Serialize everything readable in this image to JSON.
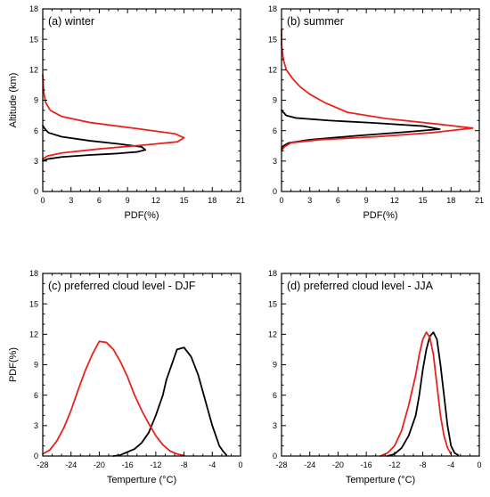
{
  "chart_data": [
    {
      "id": "a",
      "type": "line",
      "title": "(a) winter",
      "xlabel": "PDF(%)",
      "ylabel": "Altitude (km)",
      "xlim": [
        0,
        21
      ],
      "ylim": [
        0,
        18
      ],
      "xticks": [
        0,
        3,
        6,
        9,
        12,
        15,
        18,
        21
      ],
      "yticks": [
        0,
        3,
        6,
        9,
        12,
        15,
        18
      ],
      "grid": false,
      "series": [
        {
          "color": "#000000",
          "points": [
            [
              0.0,
              3.0
            ],
            [
              0.5,
              3.2
            ],
            [
              2.0,
              3.4
            ],
            [
              5.0,
              3.6
            ],
            [
              8.0,
              3.75
            ],
            [
              10.0,
              3.9
            ],
            [
              10.9,
              4.1
            ],
            [
              10.5,
              4.4
            ],
            [
              8.0,
              4.7
            ],
            [
              5.0,
              5.0
            ],
            [
              2.0,
              5.4
            ],
            [
              0.6,
              5.8
            ],
            [
              0.2,
              6.2
            ],
            [
              0.0,
              6.5
            ]
          ]
        },
        {
          "color": "#e8231c",
          "points": [
            [
              0.0,
              3.2
            ],
            [
              0.5,
              3.5
            ],
            [
              2.0,
              3.8
            ],
            [
              6.0,
              4.2
            ],
            [
              11.0,
              4.6
            ],
            [
              14.3,
              4.9
            ],
            [
              15.0,
              5.3
            ],
            [
              14.0,
              5.7
            ],
            [
              10.0,
              6.2
            ],
            [
              5.0,
              6.8
            ],
            [
              2.0,
              7.4
            ],
            [
              0.8,
              8.0
            ],
            [
              0.3,
              8.8
            ],
            [
              0.1,
              9.8
            ],
            [
              0.0,
              11.5
            ]
          ]
        }
      ]
    },
    {
      "id": "b",
      "type": "line",
      "title": "(b) summer",
      "xlabel": "PDF(%)",
      "ylabel": "",
      "xlim": [
        0,
        21
      ],
      "ylim": [
        0,
        18
      ],
      "xticks": [
        0,
        3,
        6,
        9,
        12,
        15,
        18,
        21
      ],
      "yticks": [
        0,
        3,
        6,
        9,
        12,
        15,
        18
      ],
      "grid": false,
      "series": [
        {
          "color": "#000000",
          "points": [
            [
              0.0,
              4.2
            ],
            [
              0.2,
              4.5
            ],
            [
              0.8,
              4.8
            ],
            [
              3.0,
              5.1
            ],
            [
              8.0,
              5.5
            ],
            [
              13.0,
              5.85
            ],
            [
              16.8,
              6.15
            ],
            [
              15.0,
              6.45
            ],
            [
              10.0,
              6.75
            ],
            [
              5.0,
              7.0
            ],
            [
              1.5,
              7.25
            ],
            [
              0.5,
              7.5
            ],
            [
              0.2,
              7.8
            ],
            [
              0.0,
              8.0
            ]
          ]
        },
        {
          "color": "#e8231c",
          "points": [
            [
              0.0,
              4.0
            ],
            [
              0.3,
              4.4
            ],
            [
              1.0,
              4.8
            ],
            [
              4.0,
              5.1
            ],
            [
              10.0,
              5.4
            ],
            [
              16.0,
              5.8
            ],
            [
              20.3,
              6.25
            ],
            [
              17.0,
              6.6
            ],
            [
              11.0,
              7.2
            ],
            [
              7.0,
              7.8
            ],
            [
              4.5,
              8.8
            ],
            [
              3.0,
              9.6
            ],
            [
              2.0,
              10.3
            ],
            [
              1.2,
              11.1
            ],
            [
              0.5,
              12.0
            ],
            [
              0.2,
              13.0
            ],
            [
              0.0,
              14.5
            ],
            [
              0.0,
              16.0
            ]
          ]
        }
      ]
    },
    {
      "id": "c",
      "type": "line",
      "title": "(c) preferred cloud level - DJF",
      "xlabel": "Temperture (°C)",
      "ylabel": "PDF(%)",
      "xlim": [
        -28,
        0
      ],
      "ylim": [
        0,
        18
      ],
      "xticks": [
        -28,
        -24,
        -20,
        -16,
        -12,
        -8,
        -4,
        0
      ],
      "yticks": [
        0,
        3,
        6,
        9,
        12,
        15,
        18
      ],
      "grid": false,
      "series": [
        {
          "color": "#000000",
          "points": [
            [
              -18.0,
              0.0
            ],
            [
              -17.0,
              0.1
            ],
            [
              -16.0,
              0.4
            ],
            [
              -15.0,
              0.7
            ],
            [
              -14.0,
              1.3
            ],
            [
              -13.0,
              2.3
            ],
            [
              -12.0,
              4.0
            ],
            [
              -11.0,
              6.0
            ],
            [
              -10.5,
              7.5
            ],
            [
              -10.0,
              8.5
            ],
            [
              -9.5,
              9.5
            ],
            [
              -9.0,
              10.5
            ],
            [
              -8.0,
              10.7
            ],
            [
              -7.0,
              9.8
            ],
            [
              -6.0,
              8.0
            ],
            [
              -5.0,
              5.5
            ],
            [
              -4.0,
              3.0
            ],
            [
              -3.0,
              1.0
            ],
            [
              -2.5,
              0.5
            ],
            [
              -2.0,
              0.1
            ]
          ]
        },
        {
          "color": "#e8231c",
          "points": [
            [
              -28.0,
              0.2
            ],
            [
              -27.0,
              0.6
            ],
            [
              -26.0,
              1.5
            ],
            [
              -25.0,
              2.8
            ],
            [
              -24.0,
              4.5
            ],
            [
              -23.0,
              6.5
            ],
            [
              -22.0,
              8.4
            ],
            [
              -21.0,
              10.0
            ],
            [
              -20.0,
              11.3
            ],
            [
              -19.0,
              11.2
            ],
            [
              -18.0,
              10.5
            ],
            [
              -17.0,
              9.3
            ],
            [
              -16.0,
              7.8
            ],
            [
              -15.0,
              6.0
            ],
            [
              -14.0,
              4.5
            ],
            [
              -13.0,
              3.2
            ],
            [
              -12.0,
              2.0
            ],
            [
              -11.0,
              1.1
            ],
            [
              -10.0,
              0.5
            ],
            [
              -9.0,
              0.2
            ],
            [
              -8.0,
              0.05
            ]
          ]
        }
      ]
    },
    {
      "id": "d",
      "type": "line",
      "title": "(d) preferred cloud level - JJA",
      "xlabel": "Temperture (°C)",
      "ylabel": "",
      "xlim": [
        -28,
        0
      ],
      "ylim": [
        0,
        18
      ],
      "xticks": [
        -28,
        -24,
        -20,
        -16,
        -12,
        -8,
        -4,
        0
      ],
      "yticks": [
        0,
        3,
        6,
        9,
        12,
        15,
        18
      ],
      "grid": false,
      "series": [
        {
          "color": "#000000",
          "points": [
            [
              -13.0,
              0.0
            ],
            [
              -12.0,
              0.2
            ],
            [
              -11.0,
              0.8
            ],
            [
              -10.0,
              2.0
            ],
            [
              -9.0,
              4.0
            ],
            [
              -8.5,
              6.0
            ],
            [
              -8.0,
              8.5
            ],
            [
              -7.5,
              10.5
            ],
            [
              -7.0,
              11.8
            ],
            [
              -6.5,
              12.2
            ],
            [
              -6.0,
              11.5
            ],
            [
              -5.5,
              9.0
            ],
            [
              -5.0,
              6.0
            ],
            [
              -4.5,
              3.0
            ],
            [
              -4.0,
              1.0
            ],
            [
              -3.5,
              0.3
            ],
            [
              -3.0,
              0.1
            ]
          ]
        },
        {
          "color": "#e8231c",
          "points": [
            [
              -14.0,
              0.0
            ],
            [
              -13.0,
              0.3
            ],
            [
              -12.0,
              1.0
            ],
            [
              -11.0,
              2.5
            ],
            [
              -10.0,
              5.0
            ],
            [
              -9.0,
              8.0
            ],
            [
              -8.5,
              10.0
            ],
            [
              -8.0,
              11.5
            ],
            [
              -7.5,
              12.2
            ],
            [
              -7.0,
              11.7
            ],
            [
              -6.5,
              10.0
            ],
            [
              -6.0,
              7.0
            ],
            [
              -5.5,
              4.0
            ],
            [
              -5.0,
              2.0
            ],
            [
              -4.5,
              0.8
            ],
            [
              -4.0,
              0.2
            ]
          ]
        }
      ]
    }
  ]
}
